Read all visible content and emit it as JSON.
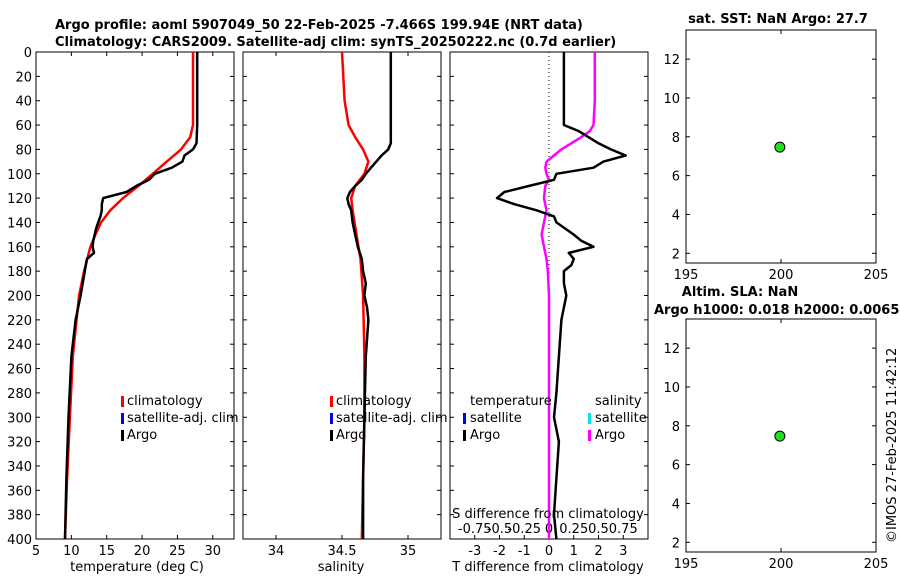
{
  "header": {
    "title_line1": "Argo profile: aoml 5907049_50 22-Feb-2025 -7.466S 199.94E (NRT data)",
    "title_line2": "Climatology: CARS2009. Satellite-adj clim: synTS_20250222.nc (0.7d earlier)"
  },
  "colors": {
    "climatology": "#ff0000",
    "satellite_adj": "#0000ff",
    "argo": "#000000",
    "temp_satellite": "#0000ff",
    "sal_satellite": "#00e5e5",
    "sal_argo": "#ff00ff",
    "marker": "#22dd22"
  },
  "legends": {
    "profile": {
      "climatology": "climatology",
      "satellite": "satellite-adj. clim",
      "argo": "Argo"
    },
    "diff_temperature": {
      "heading": "temperature",
      "satellite": "satellite",
      "argo": "Argo"
    },
    "diff_salinity": {
      "heading": "salinity",
      "satellite": "satellite",
      "argo": "Argo"
    }
  },
  "watermark": "©IMOS 27-Feb-2025 11:42:12",
  "chart_data": [
    {
      "id": "temperature-profile",
      "type": "line",
      "xlabel": "temperature (deg C)",
      "ylabel": "",
      "xlim": [
        5,
        33
      ],
      "ylim": [
        400,
        0
      ],
      "xticks": [
        5,
        10,
        15,
        20,
        25,
        30
      ],
      "yticks": [
        0,
        20,
        40,
        60,
        80,
        100,
        120,
        140,
        160,
        180,
        200,
        220,
        240,
        260,
        280,
        300,
        320,
        340,
        360,
        380,
        400
      ],
      "series": [
        {
          "name": "climatology",
          "depth": [
            0,
            20,
            40,
            60,
            70,
            80,
            90,
            100,
            110,
            120,
            130,
            140,
            150,
            160,
            180,
            200,
            250,
            300,
            350,
            400
          ],
          "values": [
            27.2,
            27.2,
            27.2,
            27.2,
            26.8,
            25.5,
            23.5,
            21.5,
            19.5,
            17.3,
            15.5,
            14.2,
            13.4,
            12.7,
            11.8,
            11.1,
            10.2,
            9.8,
            9.4,
            9.1
          ]
        },
        {
          "name": "Argo",
          "depth": [
            0,
            20,
            40,
            60,
            75,
            80,
            85,
            90,
            95,
            100,
            105,
            110,
            115,
            120,
            125,
            130,
            135,
            140,
            145,
            150,
            155,
            160,
            165,
            170,
            180,
            190,
            200,
            220,
            250,
            300,
            350,
            400
          ],
          "values": [
            27.8,
            27.8,
            27.8,
            27.8,
            27.7,
            27.2,
            26.0,
            25.7,
            24.2,
            21.8,
            21.0,
            19.2,
            17.8,
            14.5,
            14.3,
            14.3,
            14.1,
            13.8,
            13.5,
            13.3,
            13.1,
            13.0,
            13.2,
            12.2,
            11.9,
            11.6,
            11.3,
            10.6,
            10.0,
            9.6,
            9.3,
            9.1
          ]
        }
      ]
    },
    {
      "id": "salinity-profile",
      "type": "line",
      "xlabel": "salinity",
      "ylabel": "",
      "xlim": [
        33.75,
        35.25
      ],
      "ylim": [
        400,
        0
      ],
      "xticks": [
        34,
        34.5,
        35
      ],
      "series": [
        {
          "name": "climatology",
          "depth": [
            0,
            20,
            40,
            60,
            70,
            80,
            90,
            100,
            110,
            120,
            130,
            150,
            170,
            200,
            250,
            300,
            350,
            400
          ],
          "values": [
            34.5,
            34.51,
            34.52,
            34.55,
            34.6,
            34.66,
            34.7,
            34.67,
            34.6,
            34.57,
            34.58,
            34.61,
            34.64,
            34.66,
            34.67,
            34.67,
            34.66,
            34.65
          ]
        },
        {
          "name": "Argo",
          "depth": [
            0,
            20,
            40,
            60,
            75,
            80,
            85,
            90,
            95,
            100,
            105,
            110,
            115,
            120,
            125,
            130,
            140,
            150,
            160,
            170,
            180,
            190,
            200,
            210,
            220,
            250,
            300,
            350,
            400
          ],
          "values": [
            34.87,
            34.87,
            34.87,
            34.87,
            34.87,
            34.85,
            34.8,
            34.76,
            34.72,
            34.68,
            34.65,
            34.6,
            34.56,
            34.54,
            34.55,
            34.57,
            34.58,
            34.6,
            34.62,
            34.65,
            34.66,
            34.68,
            34.67,
            34.69,
            34.7,
            34.68,
            34.67,
            34.66,
            34.66
          ]
        }
      ]
    },
    {
      "id": "difference-profile",
      "type": "line",
      "xlabel": "T difference from climatology",
      "xlabel_top": "S difference from climatology",
      "xlim": [
        -4,
        4
      ],
      "ylim": [
        400,
        0
      ],
      "xticks": [
        -3,
        -2,
        -1,
        0,
        1,
        2,
        3
      ],
      "top_ticks": [
        "-0.75",
        "-0.5",
        "-0.25",
        "0",
        "0.25",
        "0.5",
        "0.75"
      ],
      "series": [
        {
          "name": "temperature Argo",
          "depth": [
            0,
            10,
            20,
            40,
            60,
            65,
            70,
            75,
            80,
            85,
            90,
            95,
            100,
            105,
            110,
            115,
            120,
            125,
            130,
            135,
            140,
            150,
            155,
            160,
            165,
            170,
            175,
            180,
            190,
            200,
            220,
            250,
            280,
            300,
            320,
            350,
            380,
            400
          ],
          "values": [
            0.6,
            0.6,
            0.6,
            0.6,
            0.6,
            1.2,
            1.6,
            2.0,
            2.5,
            3.1,
            2.2,
            1.8,
            0.3,
            0.2,
            -0.8,
            -1.8,
            -2.1,
            -1.4,
            -0.5,
            0.2,
            0.3,
            1.0,
            1.3,
            1.8,
            0.8,
            1.0,
            0.9,
            0.6,
            0.6,
            0.7,
            0.5,
            0.4,
            0.3,
            0.2,
            0.4,
            0.3,
            0.2,
            0.3
          ]
        },
        {
          "name": "salinity Argo",
          "depth": [
            0,
            20,
            40,
            60,
            65,
            70,
            75,
            80,
            85,
            90,
            95,
            100,
            105,
            110,
            120,
            130,
            140,
            150,
            160,
            170,
            180,
            200,
            250,
            300,
            350,
            400
          ],
          "values": [
            1.85,
            1.85,
            1.85,
            1.8,
            1.65,
            1.3,
            0.9,
            0.5,
            0.2,
            -0.1,
            -0.15,
            -0.1,
            0.0,
            -0.15,
            -0.2,
            -0.1,
            -0.2,
            -0.3,
            -0.2,
            -0.1,
            -0.05,
            0.0,
            0.0,
            0.0,
            0.0,
            0.0
          ]
        }
      ]
    },
    {
      "id": "sst-scatter",
      "type": "scatter",
      "title": "sat. SST: NaN Argo: 27.7",
      "xlim": [
        195,
        205
      ],
      "ylim": [
        1.5,
        13.5
      ],
      "xticks": [
        195,
        200,
        205
      ],
      "yticks": [
        2,
        4,
        6,
        8,
        10,
        12
      ],
      "points": [
        {
          "x": 199.94,
          "y": 7.466
        }
      ]
    },
    {
      "id": "sla-scatter",
      "type": "scatter",
      "title_line1": "Altim. SLA: NaN",
      "title_line2": "Argo h1000: 0.018 h2000: 0.0065",
      "xlim": [
        195,
        205
      ],
      "ylim": [
        1.5,
        13.5
      ],
      "xticks": [
        195,
        200,
        205
      ],
      "yticks": [
        2,
        4,
        6,
        8,
        10,
        12
      ],
      "points": [
        {
          "x": 199.94,
          "y": 7.466
        }
      ]
    }
  ]
}
